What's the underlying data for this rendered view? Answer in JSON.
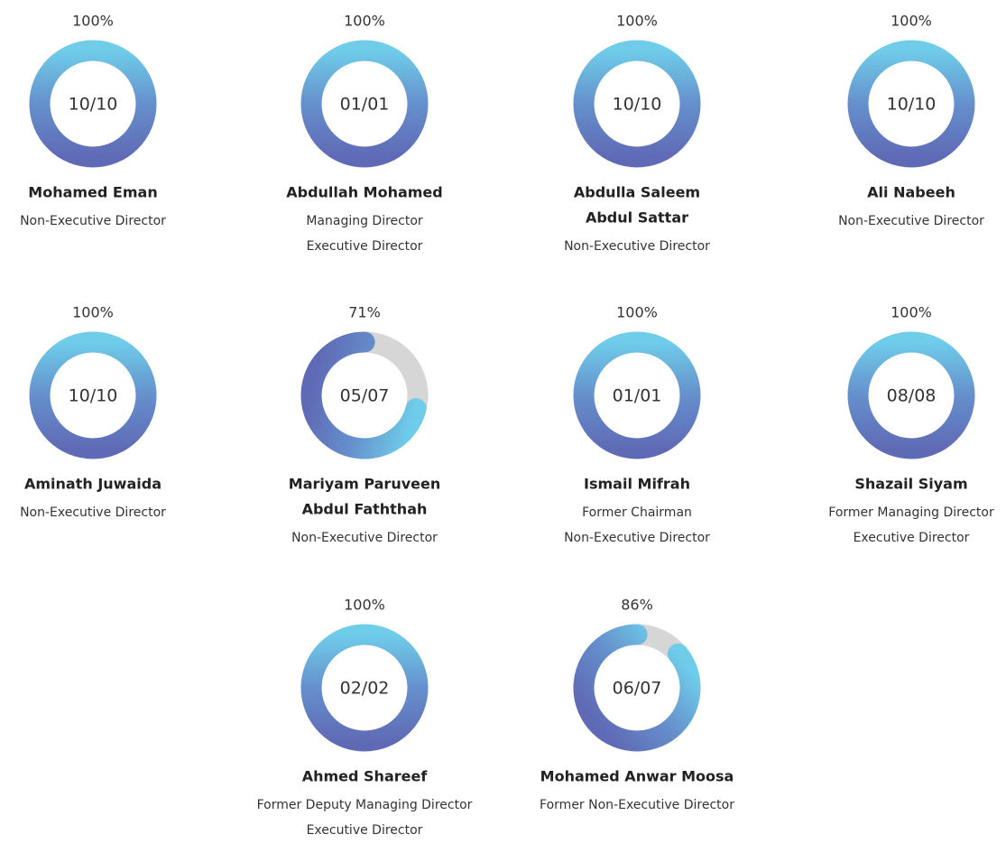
{
  "members": [
    {
      "percent": {
        "value": 100,
        "label": "100%"
      },
      "attended": "10/10",
      "name": [
        "Mohamed Eman"
      ],
      "roles": [
        "Non-Executive Director"
      ]
    },
    {
      "percent": {
        "value": 100,
        "label": "100%"
      },
      "attended": "01/01",
      "name": [
        "Abdullah Mohamed"
      ],
      "roles": [
        "Managing Director",
        "Executive Director"
      ]
    },
    {
      "percent": {
        "value": 100,
        "label": "100%"
      },
      "attended": "10/10",
      "name": [
        "Abdulla Saleem",
        "Abdul Sattar"
      ],
      "roles": [
        "Non-Executive Director"
      ]
    },
    {
      "percent": {
        "value": 100,
        "label": "100%"
      },
      "attended": "10/10",
      "name": [
        "Ali Nabeeh"
      ],
      "roles": [
        "Non-Executive Director"
      ]
    },
    {
      "percent": {
        "value": 100,
        "label": "100%"
      },
      "attended": "10/10",
      "name": [
        "Aminath Juwaida"
      ],
      "roles": [
        "Non-Executive Director"
      ]
    },
    {
      "percent": {
        "value": 71,
        "label": "71%"
      },
      "attended": "05/07",
      "name": [
        "Mariyam Paruveen",
        "Abdul Faththah"
      ],
      "roles": [
        "Non-Executive Director"
      ]
    },
    {
      "percent": {
        "value": 100,
        "label": "100%"
      },
      "attended": "01/01",
      "name": [
        "Ismail Mifrah"
      ],
      "roles": [
        "Former Chairman",
        "Non-Executive Director"
      ]
    },
    {
      "percent": {
        "value": 100,
        "label": "100%"
      },
      "attended": "08/08",
      "name": [
        "Shazail Siyam"
      ],
      "roles": [
        "Former Managing Director",
        "Executive Director"
      ]
    },
    {
      "percent": {
        "value": 100,
        "label": "100%"
      },
      "attended": "02/02",
      "name": [
        "Ahmed Shareef"
      ],
      "roles": [
        "Former Deputy Managing Director",
        "Executive Director"
      ]
    },
    {
      "percent": {
        "value": 86,
        "label": "86%"
      },
      "attended": "06/07",
      "name": [
        "Mohamed Anwar Moosa"
      ],
      "roles": [
        "Former Non-Executive Director"
      ]
    }
  ]
}
